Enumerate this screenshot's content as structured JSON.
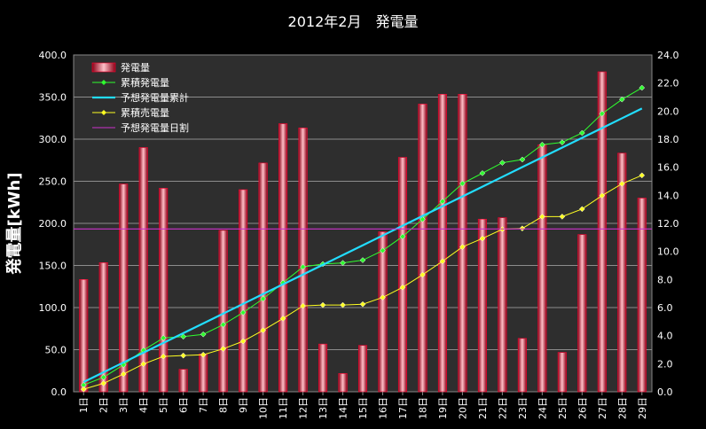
{
  "chart_data": {
    "type": "bar",
    "title": "2012年2月　発電量",
    "ylabel": "発電量[kWh]",
    "ylim": [
      0,
      400
    ],
    "y2lim": [
      0,
      24
    ],
    "yticks": [
      "0.0",
      "50.0",
      "100.0",
      "150.0",
      "200.0",
      "250.0",
      "300.0",
      "350.0",
      "400.0"
    ],
    "y2ticks": [
      "0.0",
      "2.0",
      "4.0",
      "6.0",
      "8.0",
      "10.0",
      "12.0",
      "14.0",
      "16.0",
      "18.0",
      "20.0",
      "22.0",
      "24.0"
    ],
    "grid": true,
    "legend_position": "top-left",
    "categories": [
      "1日",
      "2日",
      "3日",
      "4日",
      "5日",
      "6日",
      "7日",
      "8日",
      "9日",
      "10日",
      "11日",
      "12日",
      "13日",
      "14日",
      "15日",
      "16日",
      "17日",
      "18日",
      "19日",
      "20日",
      "21日",
      "22日",
      "23日",
      "24日",
      "25日",
      "26日",
      "27日",
      "28日",
      "29日"
    ],
    "series": [
      {
        "name": "発電量",
        "axis": "right",
        "kind": "bar",
        "color": "#ff3350",
        "values": [
          8.0,
          9.2,
          14.8,
          17.4,
          14.5,
          1.6,
          2.7,
          11.5,
          14.4,
          16.3,
          19.1,
          18.8,
          3.4,
          1.3,
          3.3,
          11.4,
          16.7,
          20.5,
          21.2,
          21.2,
          12.3,
          12.4,
          3.8,
          17.6,
          2.8,
          11.2,
          22.8,
          17.0,
          13.8
        ]
      },
      {
        "name": "累積発電量",
        "axis": "left",
        "kind": "line",
        "color": "#2fff2f",
        "marker": "diamond-filled",
        "values": [
          8.0,
          17.2,
          32.0,
          49.4,
          63.9,
          65.5,
          68.2,
          79.7,
          94.1,
          110.4,
          129.5,
          148.3,
          151.7,
          153.0,
          156.3,
          167.7,
          184.4,
          204.9,
          226.1,
          247.3,
          259.6,
          272.0,
          275.8,
          293.4,
          296.2,
          307.4,
          330.2,
          347.2,
          361.0
        ]
      },
      {
        "name": "予想発電量累計",
        "axis": "left",
        "kind": "line",
        "color": "#22ddff",
        "marker": "none",
        "values": [
          11.6,
          23.2,
          34.8,
          46.4,
          58.0,
          69.6,
          81.2,
          92.8,
          104.4,
          116.0,
          127.6,
          139.2,
          150.8,
          162.4,
          174.0,
          185.6,
          197.2,
          208.8,
          220.4,
          232.0,
          243.6,
          255.2,
          266.8,
          278.4,
          290.0,
          301.6,
          313.2,
          324.8,
          336.4
        ]
      },
      {
        "name": "累積売電量",
        "axis": "left",
        "kind": "line",
        "color": "#ffff22",
        "marker": "diamond-filled",
        "values": [
          3.0,
          10.0,
          21.0,
          33.0,
          42.0,
          43.0,
          44.0,
          51.0,
          60.0,
          73.0,
          87.0,
          102.0,
          103.0,
          103.0,
          104.0,
          112.0,
          124.0,
          139.0,
          155.0,
          172.0,
          182.0,
          193.0,
          194.0,
          208.0,
          208.0,
          217.0,
          233.0,
          247.0,
          257.0
        ]
      },
      {
        "name": "予想発電量日割",
        "axis": "right",
        "kind": "hline",
        "color": "#cc33cc",
        "value": 11.6
      }
    ]
  }
}
